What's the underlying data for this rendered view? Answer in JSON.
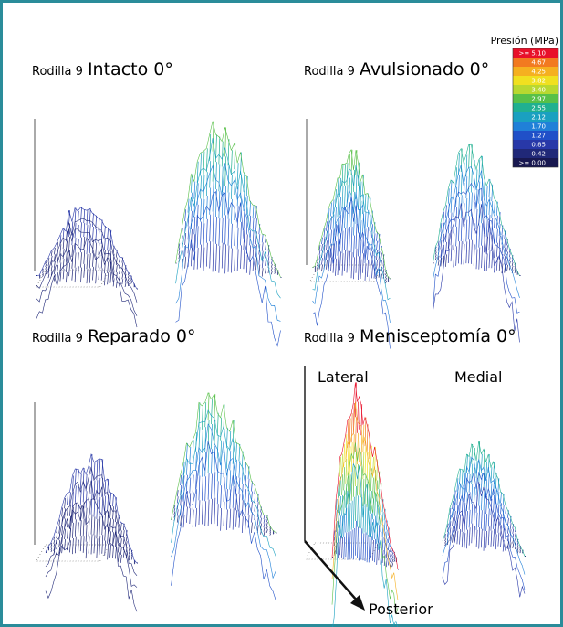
{
  "panels": [
    {
      "prefix": "Rodilla 9",
      "title": "Intacto 0°"
    },
    {
      "prefix": "Rodilla 9",
      "title": "Avulsionado 0°"
    },
    {
      "prefix": "Rodilla 9",
      "title": "Reparado 0°"
    },
    {
      "prefix": "Rodilla 9",
      "title": "Menisceptomía 0°"
    }
  ],
  "legend": {
    "title": "Presión (MPa)",
    "labels": [
      ">= 5.10",
      "4.67",
      "4.25",
      "3.82",
      "3.40",
      "2.97",
      "2.55",
      "2.12",
      "1.70",
      "1.27",
      "0.85",
      "0.42",
      ">= 0.00"
    ]
  },
  "annotations": {
    "lateral": "Lateral",
    "medial": "Medial",
    "posterior": "Posterior"
  }
}
